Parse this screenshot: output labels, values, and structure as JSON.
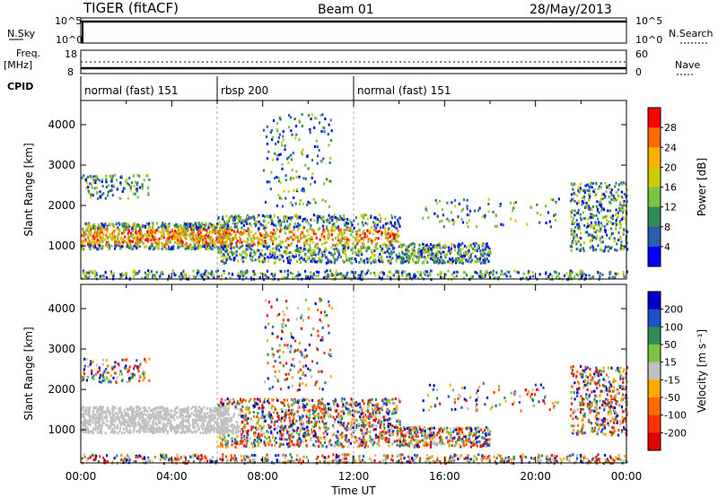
{
  "header": {
    "title": "TIGER (fitACF)",
    "beam": "Beam 01",
    "date": "28/May/2013"
  },
  "side_labels": {
    "nsky": "N.Sky",
    "nsearch": "N.Search",
    "freq_top": "Freq.",
    "freq_unit": "[MHz]",
    "nave": "Nave",
    "cpid": "CPID",
    "nsky_ticks": [
      "10^5",
      "10^0"
    ],
    "nsearch_ticks": [
      "10^5",
      "10^0"
    ],
    "freq_ticks": [
      "18",
      "8"
    ],
    "nave_ticks": [
      "60",
      "0"
    ]
  },
  "chart_data": [
    {
      "type": "table",
      "name": "cpid",
      "segments": [
        {
          "label": "normal (fast) 151",
          "start": 0,
          "end": 6
        },
        {
          "label": "rbsp 200",
          "start": 6,
          "end": 12
        },
        {
          "label": "normal (fast) 151",
          "start": 12,
          "end": 24
        }
      ]
    },
    {
      "type": "heatmap",
      "name": "power",
      "xlabel": "",
      "ylabel": "Slant Range [km]",
      "xlim": [
        0,
        24
      ],
      "ylim": [
        180,
        4600
      ],
      "yticks": [
        1000,
        2000,
        3000,
        4000
      ],
      "colorbar": {
        "label": "Power [dB]",
        "ticks": [
          "28",
          "24",
          "20",
          "16",
          "12",
          "8",
          "4"
        ],
        "colors": [
          "#ff0000",
          "#ff6a00",
          "#ffb000",
          "#cccc00",
          "#7dc242",
          "#2e8b57",
          "#2a5db0",
          "#0000ff"
        ]
      }
    },
    {
      "type": "heatmap",
      "name": "velocity",
      "xlabel": "Time UT",
      "ylabel": "Slant Range [km]",
      "xlim": [
        0,
        24
      ],
      "ylim": [
        180,
        4600
      ],
      "xticks": [
        "00:00",
        "04:00",
        "08:00",
        "12:00",
        "16:00",
        "20:00",
        "00:00"
      ],
      "yticks": [
        1000,
        2000,
        3000,
        4000
      ],
      "colorbar": {
        "label": "Velocity [m s⁻¹]",
        "ticks": [
          "200",
          "100",
          "50",
          "15",
          "-15",
          "-50",
          "-100",
          "-200"
        ],
        "colors": [
          "#0000c8",
          "#1e50c8",
          "#2e8b57",
          "#7dc242",
          "#c0c0c0",
          "#ffaa00",
          "#ff6a00",
          "#ff3300",
          "#e00000"
        ]
      }
    }
  ]
}
